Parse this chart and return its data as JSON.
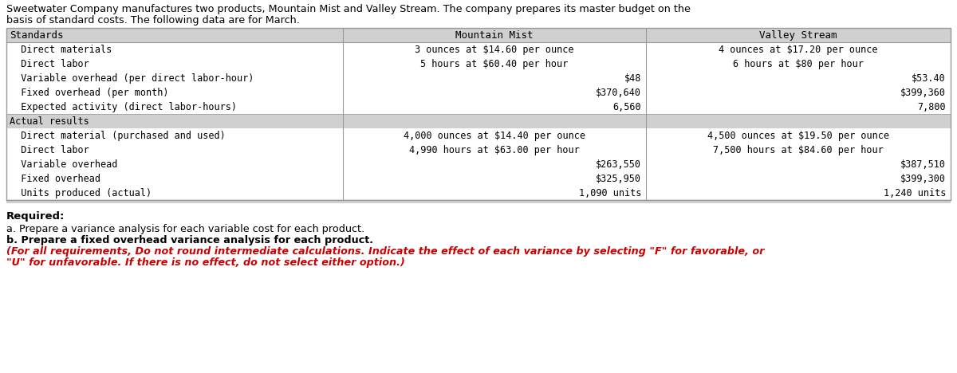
{
  "intro_line1": "Sweetwater Company manufactures two products, Mountain Mist and Valley Stream. The company prepares its master budget on the",
  "intro_line2": "basis of standard costs. The following data are for March.",
  "table_header": [
    "Standards",
    "Mountain Mist",
    "Valley Stream"
  ],
  "header_bg": "#d0d0d0",
  "section_bg": "#d0d0d0",
  "row_bg": "#ffffff",
  "table_border": "#999999",
  "rows": [
    {
      "label": "  Direct materials",
      "mm": "3 ounces at $14.60 per ounce",
      "vs": "4 ounces at $17.20 per ounce",
      "mm_align": "center",
      "vs_align": "center"
    },
    {
      "label": "  Direct labor",
      "mm": "5 hours at $60.40 per hour",
      "vs": "6 hours at $80 per hour",
      "mm_align": "center",
      "vs_align": "center"
    },
    {
      "label": "  Variable overhead (per direct labor-hour)",
      "mm": "$48",
      "vs": "$53.40",
      "mm_align": "right",
      "vs_align": "right"
    },
    {
      "label": "  Fixed overhead (per month)",
      "mm": "$370,640",
      "vs": "$399,360",
      "mm_align": "right",
      "vs_align": "right"
    },
    {
      "label": "  Expected activity (direct labor-hours)",
      "mm": "6,560",
      "vs": "7,800",
      "mm_align": "right",
      "vs_align": "right"
    },
    {
      "label": "Actual results",
      "mm": "",
      "vs": "",
      "mm_align": "center",
      "vs_align": "center",
      "is_section": true
    },
    {
      "label": "  Direct material (purchased and used)",
      "mm": "4,000 ounces at $14.40 per ounce",
      "vs": "4,500 ounces at $19.50 per ounce",
      "mm_align": "center",
      "vs_align": "center"
    },
    {
      "label": "  Direct labor",
      "mm": "4,990 hours at $63.00 per hour",
      "vs": "7,500 hours at $84.60 per hour",
      "mm_align": "center",
      "vs_align": "center"
    },
    {
      "label": "  Variable overhead",
      "mm": "$263,550",
      "vs": "$387,510",
      "mm_align": "right",
      "vs_align": "right"
    },
    {
      "label": "  Fixed overhead",
      "mm": "$325,950",
      "vs": "$399,300",
      "mm_align": "right",
      "vs_align": "right"
    },
    {
      "label": "  Units produced (actual)",
      "mm": "1,090 units",
      "vs": "1,240 units",
      "mm_align": "right",
      "vs_align": "right"
    }
  ],
  "req_bold": "Required:",
  "req_a": "a. Prepare a variance analysis for each variable cost for each product.",
  "req_b": "b. Prepare a fixed overhead variance analysis for each product.",
  "req_c1": "(For all requirements, Do not round intermediate calculations. Indicate the effect of each variance by selecting \"F\" for favorable, or",
  "req_c2": "\"U\" for unfavorable. If there is no effect, do not select either option.)",
  "text_color": "#000000",
  "red_color": "#cc0000",
  "bg_color": "#ffffff"
}
